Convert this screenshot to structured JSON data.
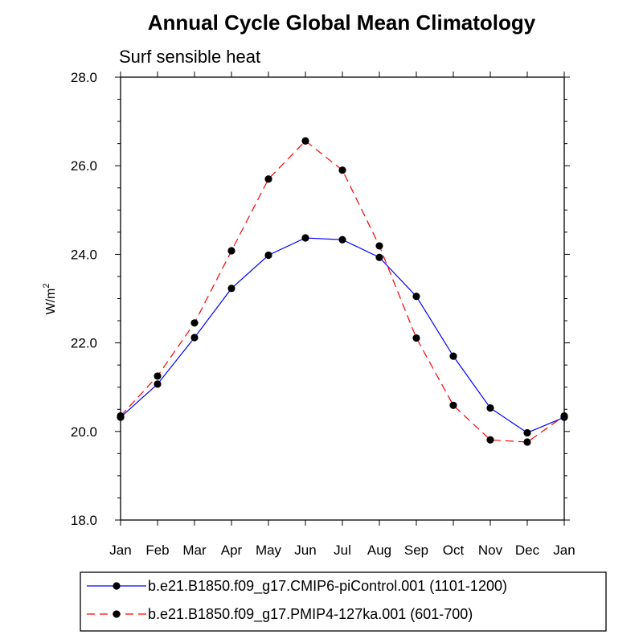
{
  "chart_data": {
    "type": "line",
    "title": "Annual Cycle Global Mean Climatology",
    "subtitle": "Surf sensible heat",
    "ylabel_base": "W/m",
    "ylabel_sup": "2",
    "categories": [
      "Jan",
      "Feb",
      "Mar",
      "Apr",
      "May",
      "Jun",
      "Jul",
      "Aug",
      "Sep",
      "Oct",
      "Nov",
      "Dec",
      "Jan"
    ],
    "ylim": [
      18.0,
      28.0
    ],
    "yticks": [
      "18.0",
      "20.0",
      "22.0",
      "24.0",
      "26.0",
      "28.0"
    ],
    "series": [
      {
        "name": "b.e21.B1850.f09_g17.CMIP6-piControl.001 (1101-1200)",
        "color": "#0000ff",
        "dash": "solid",
        "values": [
          20.32,
          21.07,
          22.12,
          23.23,
          23.98,
          24.37,
          24.33,
          23.93,
          23.05,
          21.7,
          20.53,
          19.97,
          20.32
        ]
      },
      {
        "name": "b.e21.B1850.f09_g17.PMIP4-127ka.001 (601-700)",
        "color": "#ff0000",
        "dash": "dashed",
        "values": [
          20.35,
          21.25,
          22.45,
          24.08,
          25.7,
          26.56,
          25.9,
          24.19,
          22.11,
          20.59,
          19.81,
          19.76,
          20.35
        ]
      }
    ]
  }
}
